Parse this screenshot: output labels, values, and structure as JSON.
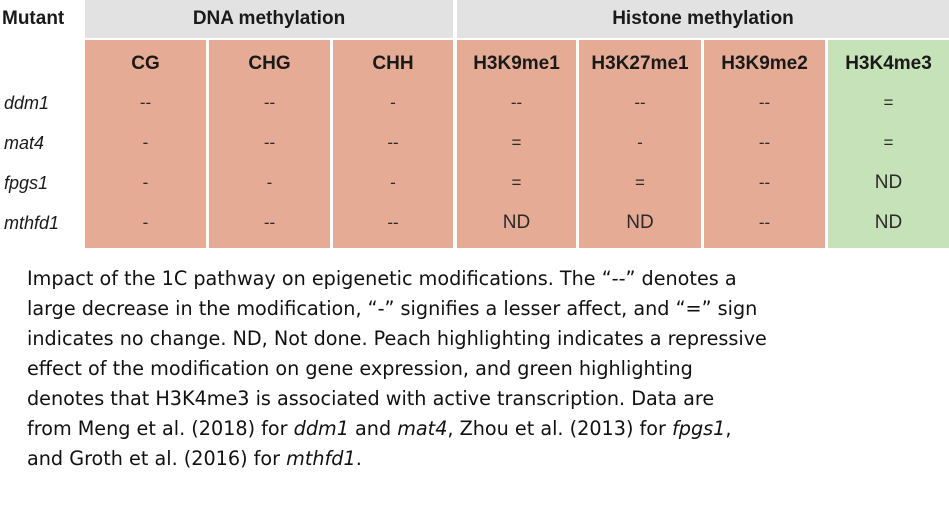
{
  "table": {
    "mutant_header": "Mutant",
    "groups": [
      {
        "label": "DNA methylation"
      },
      {
        "label": "Histone methylation"
      }
    ],
    "columns": [
      "CG",
      "CHG",
      "CHH",
      "H3K9me1",
      "H3K27me1",
      "H3K9me2",
      "H3K4me3"
    ],
    "column_colors": [
      "#e6ab94",
      "#e6ab94",
      "#e6ab94",
      "#e6ab94",
      "#e6ab94",
      "#e6ab94",
      "#c6e2b8"
    ],
    "rows": [
      {
        "mutant": "ddm1",
        "values": [
          "--",
          "--",
          "-",
          "--",
          "--",
          "--",
          "="
        ]
      },
      {
        "mutant": "mat4",
        "values": [
          "-",
          "--",
          "--",
          "=",
          "-",
          "--",
          "="
        ]
      },
      {
        "mutant": "fpgs1",
        "values": [
          "-",
          "-",
          "-",
          "=",
          "=",
          "--",
          "ND"
        ]
      },
      {
        "mutant": "mthfd1",
        "values": [
          "-",
          "--",
          "--",
          "ND",
          "ND",
          "--",
          "ND"
        ]
      }
    ]
  },
  "caption": {
    "l1": "Impact of the 1C pathway on epigenetic modifications. The “--” denotes a",
    "l2": "large decrease in the modification, “-” signifies a lesser affect, and “=” sign",
    "l3": "indicates no change. ND, Not done. Peach highlighting indicates a repressive",
    "l4": "effect of the modification on gene expression, and green highlighting",
    "l5": "denotes that H3K4me3 is associated with active transcription. Data are",
    "l6_a": "from Meng et al. (2018) for ",
    "l6_b": "ddm1",
    "l6_c": " and ",
    "l6_d": "mat4",
    "l6_e": ", Zhou et al. (2013) for ",
    "l6_f": "fpgs1",
    "l6_g": ",",
    "l7_a": "and Groth et al. (2016) for ",
    "l7_b": "mthfd1",
    "l7_c": "."
  }
}
